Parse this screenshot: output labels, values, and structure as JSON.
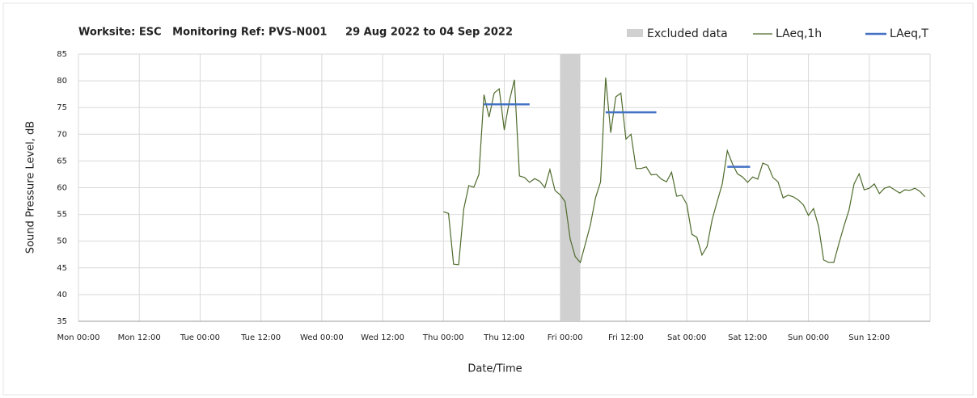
{
  "chart_data": {
    "type": "line",
    "title": "Worksite: ESC   Monitoring Ref: PVS-N001     29 Aug 2022 to 04 Sep 2022",
    "xlabel": "Date/Time",
    "ylabel": "Sound Pressure Level, dB",
    "xlim": [
      0,
      168
    ],
    "xticks": [
      {
        "value": 0,
        "label": "Mon 00:00"
      },
      {
        "value": 12,
        "label": "Mon 12:00"
      },
      {
        "value": 24,
        "label": "Tue 00:00"
      },
      {
        "value": 36,
        "label": "Tue 12:00"
      },
      {
        "value": 48,
        "label": "Wed 00:00"
      },
      {
        "value": 60,
        "label": "Wed 12:00"
      },
      {
        "value": 72,
        "label": "Thu 00:00"
      },
      {
        "value": 84,
        "label": "Thu 12:00"
      },
      {
        "value": 96,
        "label": "Fri 00:00"
      },
      {
        "value": 108,
        "label": "Fri 12:00"
      },
      {
        "value": 120,
        "label": "Sat 00:00"
      },
      {
        "value": 132,
        "label": "Sat 12:00"
      },
      {
        "value": 144,
        "label": "Sun 00:00"
      },
      {
        "value": 156,
        "label": "Sun 12:00"
      }
    ],
    "ylim": [
      35,
      85
    ],
    "yticks": [
      35,
      40,
      45,
      50,
      55,
      60,
      65,
      70,
      75,
      80,
      85
    ],
    "grid": true,
    "excluded": {
      "name": "Excluded data",
      "color": "#d0d0d0",
      "xrange": [
        95,
        99
      ]
    },
    "series": [
      {
        "name": "LAeq,1h",
        "color": "#4f6b2c",
        "x": [
          72,
          73,
          74,
          75,
          76,
          77,
          78,
          79,
          80,
          81,
          82,
          83,
          84,
          85,
          86,
          87,
          88,
          89,
          90,
          91,
          92,
          93,
          94,
          95,
          96,
          97,
          98,
          99,
          100,
          101,
          102,
          103,
          104,
          105,
          106,
          107,
          108,
          109,
          110,
          111,
          112,
          113,
          114,
          115,
          116,
          117,
          118,
          119,
          120,
          121,
          122,
          123,
          124,
          125,
          126,
          127,
          128,
          129,
          130,
          131,
          132,
          133,
          134,
          135,
          136,
          137,
          138,
          139,
          140,
          141,
          142,
          143,
          144,
          145,
          146,
          147,
          148,
          149,
          150,
          151,
          152,
          153,
          154,
          155,
          156,
          157,
          158,
          159,
          160,
          161,
          162,
          163,
          164,
          165,
          166,
          167
        ],
        "values": [
          55.5,
          55.2,
          45.7,
          45.6,
          56,
          60.4,
          60.1,
          62.5,
          77.4,
          73.2,
          77.7,
          78.5,
          70.8,
          76.2,
          80.2,
          62.2,
          61.9,
          61,
          61.7,
          61.2,
          60,
          63.4,
          59.5,
          58.7,
          57.4,
          50.4,
          47.1,
          46,
          49.5,
          53.1,
          58.1,
          61.1,
          80.6,
          70.3,
          77,
          77.7,
          69.1,
          70,
          63.6,
          63.6,
          63.9,
          62.4,
          62.5,
          61.6,
          61.1,
          62.9,
          58.4,
          58.6,
          56.9,
          51.3,
          50.7,
          47.4,
          49,
          54,
          57.4,
          60.7,
          66.9,
          64.5,
          62.6,
          62,
          61,
          62,
          61.6,
          64.6,
          64.2,
          61.9,
          61.1,
          58.1,
          58.6,
          58.3,
          57.7,
          56.8,
          54.8,
          56.1,
          52.8,
          46.5,
          46,
          46,
          49.5,
          52.8,
          55.8,
          60.7,
          62.6,
          59.6,
          59.9,
          60.7,
          58.9,
          59.9,
          60.2,
          59.6,
          59,
          59.6,
          59.5,
          59.9,
          59.3,
          58.3
        ]
      }
    ],
    "periods": {
      "name": "LAeq,T",
      "color": "#4472c4",
      "segments": [
        {
          "x": [
            80,
            89
          ],
          "value": 75.6
        },
        {
          "x": [
            104,
            114
          ],
          "value": 74.1
        },
        {
          "x": [
            128,
            132.5
          ],
          "value": 63.9
        }
      ]
    }
  }
}
